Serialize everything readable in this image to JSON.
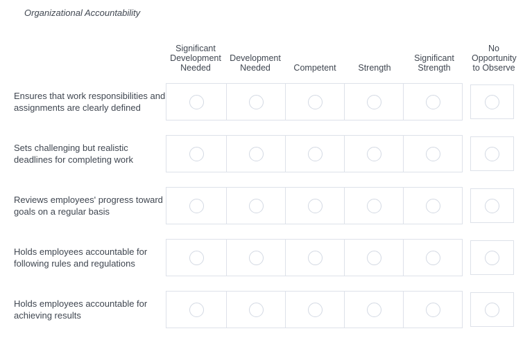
{
  "page": {
    "title": "Organizational Accountability"
  },
  "matrix": {
    "columns": [
      {
        "label": "Significant Development Needed"
      },
      {
        "label": "Development Needed"
      },
      {
        "label": "Competent"
      },
      {
        "label": "Strength"
      },
      {
        "label": "Significant Strength"
      },
      {
        "label": "No Opportunity to Observe"
      }
    ],
    "rows": [
      {
        "label": "Ensures that work responsibilities and assignments are clearly defined"
      },
      {
        "label": "Sets challenging but realistic deadlines for completing work"
      },
      {
        "label": "Reviews employees' progress toward goals on a regular basis"
      },
      {
        "label": "Holds employees accountable for following rules and regulations"
      },
      {
        "label": "Holds employees accountable for achieving results"
      }
    ],
    "radio_state": "unselected"
  },
  "colors": {
    "text": "#3f4650",
    "border": "#dde1e9",
    "radio_border": "#d3d9e3",
    "background": "#ffffff"
  }
}
